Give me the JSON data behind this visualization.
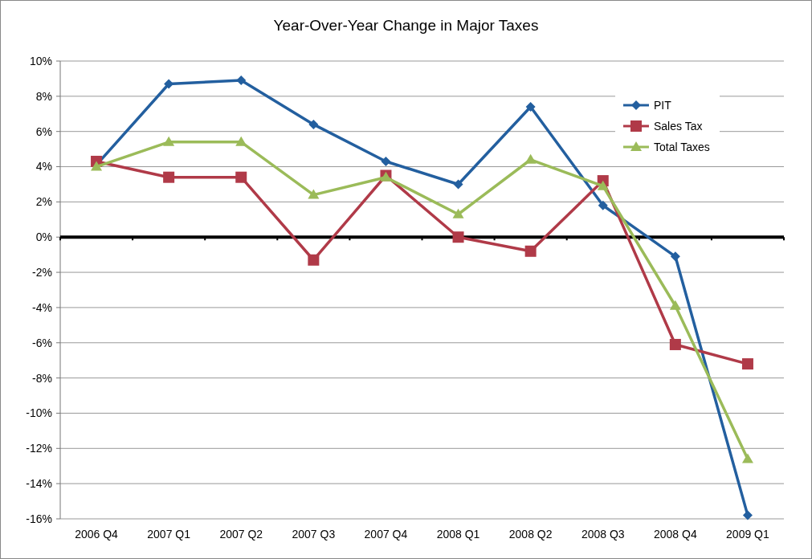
{
  "chart_data": {
    "type": "line",
    "title": "Year-Over-Year Change in Major Taxes",
    "categories": [
      "2006 Q4",
      "2007 Q1",
      "2007 Q2",
      "2007 Q3",
      "2007 Q4",
      "2008 Q1",
      "2008 Q2",
      "2008 Q3",
      "2008 Q4",
      "2009 Q1"
    ],
    "series": [
      {
        "name": "PIT",
        "color": "#235f9f",
        "marker": "diamond",
        "values": [
          4.1,
          8.7,
          8.9,
          6.4,
          4.3,
          3.0,
          7.4,
          1.8,
          -1.1,
          -15.8
        ]
      },
      {
        "name": "Sales Tax",
        "color": "#b03a48",
        "marker": "square",
        "values": [
          4.3,
          3.4,
          3.4,
          -1.3,
          3.5,
          0.0,
          -0.8,
          3.2,
          -6.1,
          -7.2
        ]
      },
      {
        "name": "Total Taxes",
        "color": "#9bbb59",
        "marker": "triangle",
        "values": [
          4.0,
          5.4,
          5.4,
          2.4,
          3.4,
          1.3,
          4.4,
          2.9,
          -3.9,
          -12.6
        ]
      }
    ],
    "ylim": [
      -16,
      10
    ],
    "yticks": [
      {
        "value": -16,
        "label": "-16%"
      },
      {
        "value": -14,
        "label": "-14%"
      },
      {
        "value": -12,
        "label": "-12%"
      },
      {
        "value": -10,
        "label": "-10%"
      },
      {
        "value": -8,
        "label": "-8%"
      },
      {
        "value": -6,
        "label": "-6%"
      },
      {
        "value": -4,
        "label": "-4%"
      },
      {
        "value": -2,
        "label": "-2%"
      },
      {
        "value": 0,
        "label": "0%"
      },
      {
        "value": 2,
        "label": "2%"
      },
      {
        "value": 4,
        "label": "4%"
      },
      {
        "value": 6,
        "label": "6%"
      },
      {
        "value": 8,
        "label": "8%"
      },
      {
        "value": 10,
        "label": "10%"
      }
    ],
    "grid": "y",
    "legend": "top right"
  }
}
